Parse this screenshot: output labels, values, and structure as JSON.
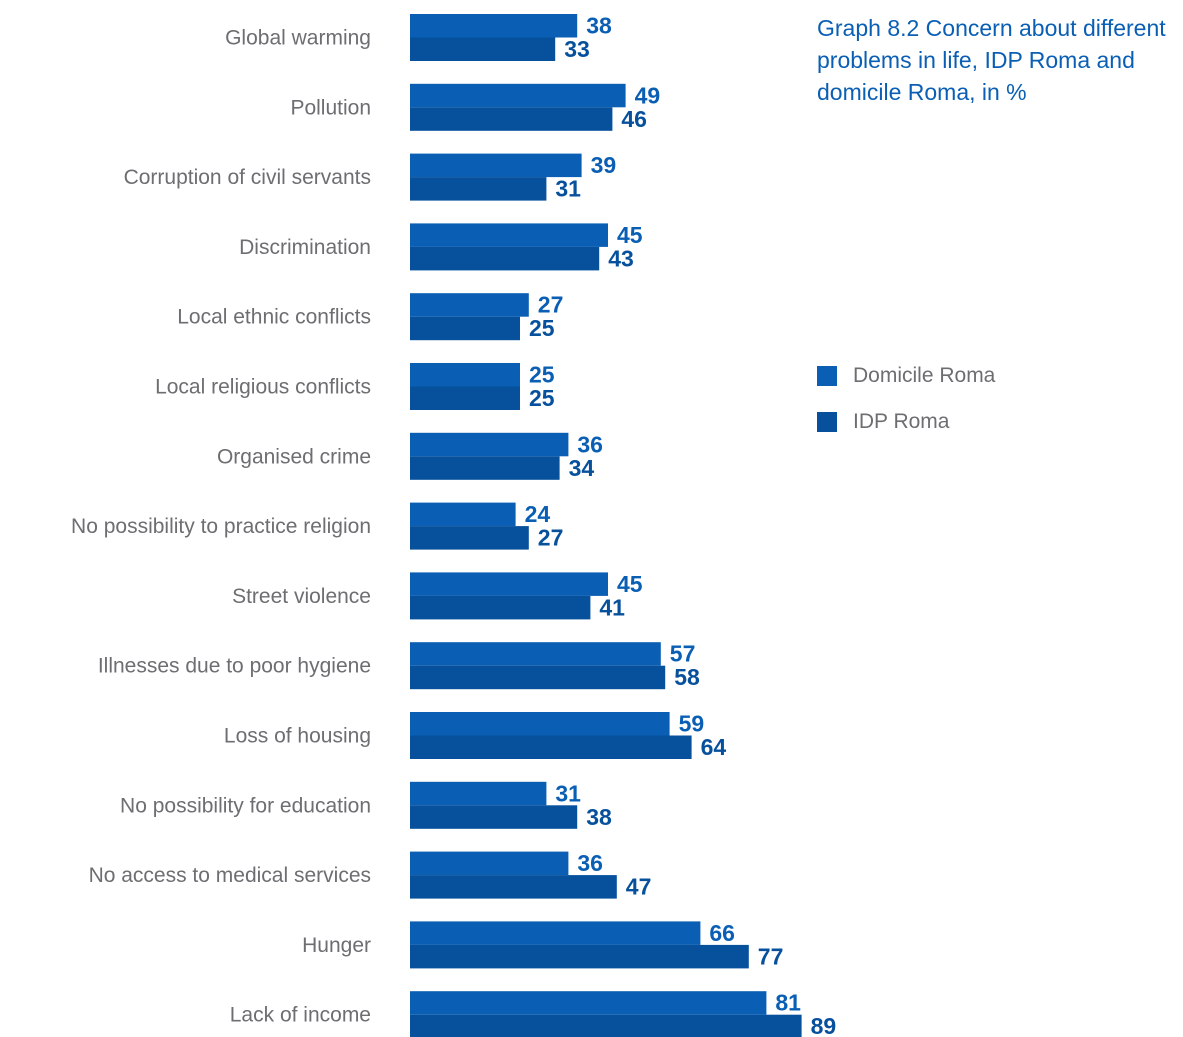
{
  "chart_data": {
    "type": "bar",
    "orientation": "horizontal",
    "title": "Graph 8.2 Concern about different problems in life, IDP Roma and domicile Roma, in %",
    "categories": [
      "Global warming",
      "Pollution",
      "Corruption of civil servants",
      "Discrimination",
      "Local ethnic conflicts",
      "Local religious conflicts",
      "Organised crime",
      "No possibility to practice religion",
      "Street violence",
      "Illnesses due to poor hygiene",
      "Loss of housing",
      "No possibility for education",
      "No access to medical services",
      "Hunger",
      "Lack of income"
    ],
    "series": [
      {
        "name": "Domicile Roma",
        "color": "#0a5fb4",
        "values": [
          38,
          49,
          39,
          45,
          27,
          25,
          36,
          24,
          45,
          57,
          59,
          31,
          36,
          66,
          81
        ]
      },
      {
        "name": "IDP Roma",
        "color": "#06509c",
        "values": [
          33,
          46,
          31,
          43,
          25,
          25,
          34,
          27,
          41,
          58,
          64,
          38,
          47,
          77,
          89
        ]
      }
    ],
    "xlim": [
      0,
      100
    ],
    "grid": false,
    "legend_position": "right"
  }
}
